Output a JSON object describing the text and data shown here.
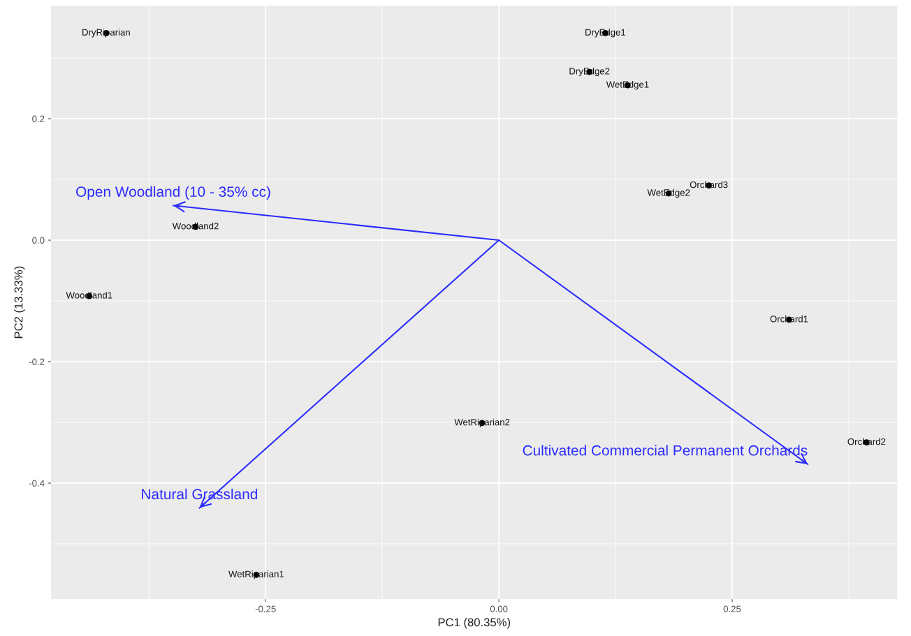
{
  "chart_data": {
    "type": "scatter",
    "xlabel": "PC1 (80.35%)",
    "ylabel": "PC2 (13.33%)",
    "xlim": [
      -0.48,
      0.427
    ],
    "ylim": [
      -0.591,
      0.386
    ],
    "xticks": [
      -0.25,
      {
        "value": 0,
        "label": "0.00"
      },
      0.25
    ],
    "yticks": [
      -0.4,
      -0.2,
      {
        "value": 0,
        "label": "0.0"
      },
      0.2
    ],
    "grid": true,
    "marker": "circle",
    "series": [
      {
        "color": "#000000",
        "x": [
          -0.421,
          0.114,
          0.097,
          0.138,
          0.225,
          0.182,
          -0.325,
          -0.439,
          0.311,
          -0.018,
          0.394,
          -0.26
        ],
        "values": [
          0.341,
          0.341,
          0.277,
          0.255,
          0.09,
          0.077,
          0.022,
          -0.092,
          -0.131,
          -0.301,
          -0.333,
          -0.551
        ],
        "value_labels": [
          "DryRiparian",
          "DryEdge1",
          "DryEdge2",
          "WetEdge1",
          "Orchard3",
          "WetEdge2",
          "Woodland2",
          "Woodland1",
          "Orchard1",
          "WetRiparian2",
          "Orchard2",
          "WetRiparian1"
        ]
      },
      {
        "type": "line",
        "name": "Open Woodland (10 - 35% cc)",
        "marker": "none",
        "color": "#2b2bff",
        "x": [
          0,
          -0.349
        ],
        "values": [
          0,
          0.057
        ]
      },
      {
        "type": "line",
        "name": "Natural Grassland",
        "marker": "none",
        "color": "#2b2bff",
        "x": [
          0,
          -0.321
        ],
        "values": [
          0,
          -0.441
        ]
      },
      {
        "type": "line",
        "name": "Cultivated Commercial Permanent Orchards",
        "marker": "none",
        "color": "#2b2bff",
        "x": [
          0,
          0.331
        ],
        "values": [
          0,
          -0.369
        ]
      }
    ]
  }
}
